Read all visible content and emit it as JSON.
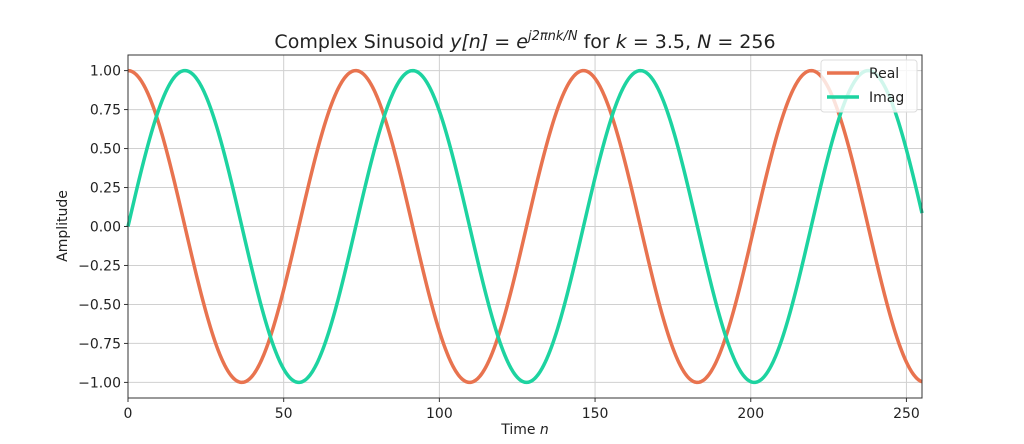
{
  "chart_data": {
    "type": "line",
    "title": "Complex Sinusoid y[n] = e^{j2πnk/N} for k = 3.5, N = 256",
    "title_parts": {
      "prefix": "Complex Sinusoid ",
      "lhs": "y[n]",
      "eq": " = ",
      "base": "e",
      "exponent": "j2πnk/N",
      "suffix_for": " for ",
      "k": "k",
      "k_val": " = 3.5, ",
      "N": "N",
      "N_val": " = 256"
    },
    "xlabel": "Time n",
    "xlabel_parts": {
      "text": "Time ",
      "var": "n"
    },
    "ylabel": "Amplitude",
    "xlim": [
      0,
      255
    ],
    "ylim": [
      -1.1,
      1.1
    ],
    "xticks": [
      "0",
      "50",
      "100",
      "150",
      "200",
      "250"
    ],
    "yticks": [
      "1.00",
      "0.75",
      "0.50",
      "0.25",
      "0.00",
      "−0.25",
      "−0.50",
      "−0.75",
      "−1.00"
    ],
    "grid": true,
    "legend_position": "upper right",
    "params": {
      "k": 3.5,
      "N": 256,
      "n_range": [
        0,
        255
      ]
    },
    "series": [
      {
        "name": "Real",
        "color": "#E8734F",
        "formula": "cos(2*pi*n*k/N)"
      },
      {
        "name": "Imag",
        "color": "#1DD3A0",
        "formula": "sin(2*pi*n*k/N)"
      }
    ]
  }
}
